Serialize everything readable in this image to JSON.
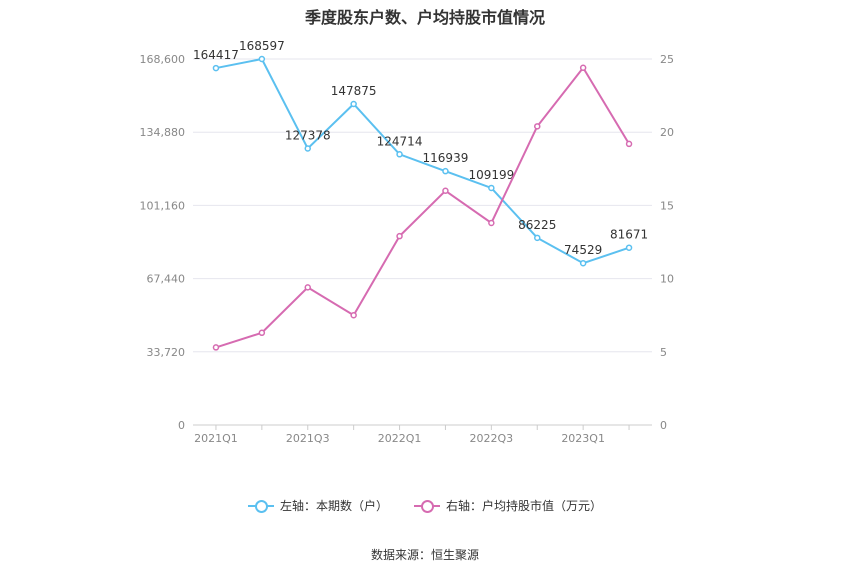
{
  "title": "季度股东户数、户均持股市值情况",
  "source": "数据来源：恒生聚源",
  "colors": {
    "left_series": "#5bc0f0",
    "right_series": "#d66bb1",
    "grid": "#e6e6ee",
    "axis_text": "#888888"
  },
  "chart_data": {
    "type": "line",
    "x": [
      "2021Q1",
      "2021Q2",
      "2021Q3",
      "2021Q4",
      "2022Q1",
      "2022Q2",
      "2022Q3",
      "2022Q4",
      "2023Q1",
      "2023Q2"
    ],
    "x_tick_labels": [
      "2021Q1",
      "",
      "2021Q3",
      "",
      "2022Q1",
      "",
      "2022Q3",
      "",
      "2023Q1",
      ""
    ],
    "left_axis": {
      "ylim": [
        0,
        168600
      ],
      "ticks": [
        "0",
        "33,720",
        "67,440",
        "101,160",
        "134,880",
        "168,600"
      ],
      "tick_values": [
        0,
        33720,
        67440,
        101160,
        134880,
        168600
      ]
    },
    "right_axis": {
      "ylim": [
        0,
        25
      ],
      "ticks": [
        "0",
        "5",
        "10",
        "15",
        "20",
        "25"
      ],
      "tick_values": [
        0,
        5,
        10,
        15,
        20,
        25
      ]
    },
    "series": [
      {
        "name": "左轴：本期数（户）",
        "axis": "left",
        "values": [
          164417,
          168597,
          127378,
          147875,
          124714,
          116939,
          109199,
          86225,
          74529,
          81671
        ],
        "labels": [
          "164417",
          "168597",
          "127378",
          "147875",
          "124714",
          "116939",
          "109199",
          "86225",
          "74529",
          "81671"
        ]
      },
      {
        "name": "右轴：户均持股市值（万元）",
        "axis": "right",
        "values": [
          5.3,
          6.3,
          9.4,
          7.5,
          12.9,
          16.0,
          13.8,
          20.4,
          24.4,
          19.2
        ]
      }
    ],
    "grid": true,
    "legend": "bottom-center"
  }
}
